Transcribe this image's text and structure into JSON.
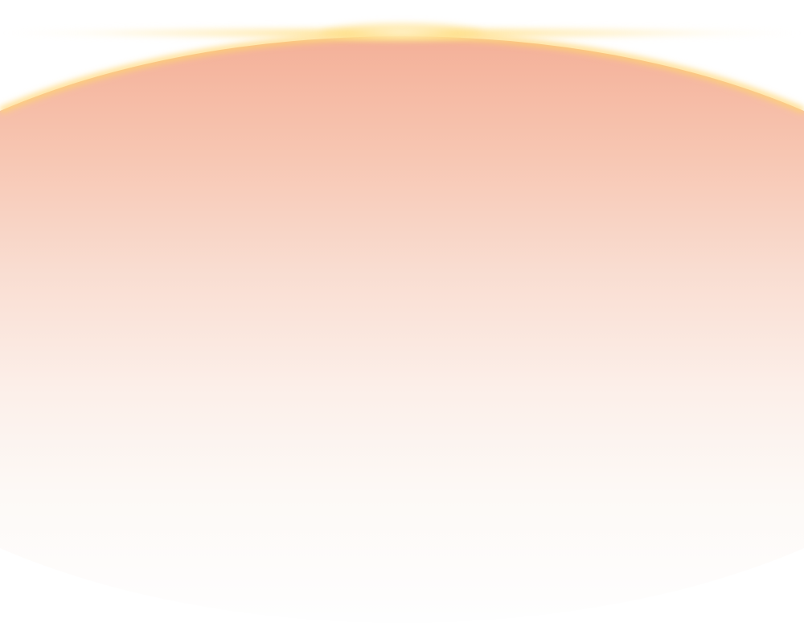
{
  "scene": {
    "colors": {
      "planet_top": "#f4b098",
      "planet_bottom": "#fefefe",
      "glow": "#ffd56e",
      "background": "#ffffff"
    }
  }
}
